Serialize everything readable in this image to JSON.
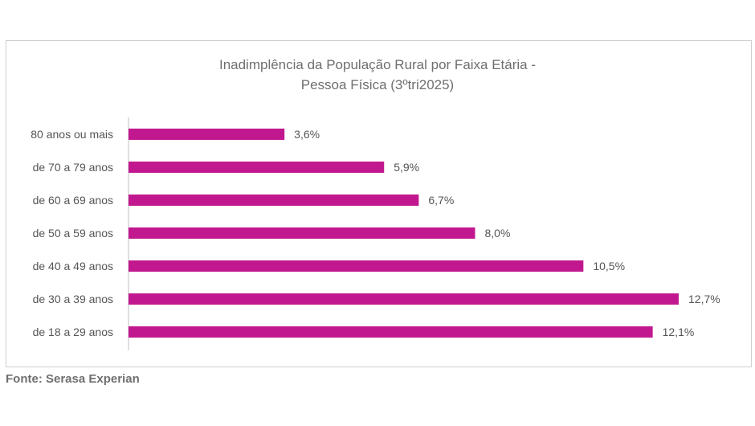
{
  "chart_data": {
    "type": "bar",
    "orientation": "horizontal",
    "title": "Inadimplência da População Rural por Faixa Etária -",
    "subtitle": "Pessoa Física (3ºtri2025)",
    "categories": [
      "80 anos ou mais",
      "de 70 a 79 anos",
      "de 60 a 69 anos",
      "de 50 a 59 anos",
      "de 40 a 49 anos",
      "de 30 a 39 anos",
      "de 18 a 29 anos"
    ],
    "values": [
      3.6,
      5.9,
      6.7,
      8.0,
      10.5,
      12.7,
      12.1
    ],
    "data_labels": [
      "3,6%",
      "5,9%",
      "6,7%",
      "8,0%",
      "10,5%",
      "12,7%",
      "12,1%"
    ],
    "xlim": [
      0,
      12.7
    ],
    "grid": false,
    "legend": "none",
    "bar_color": "#c2188f"
  },
  "source_note": "Fonte: Serasa Experian"
}
